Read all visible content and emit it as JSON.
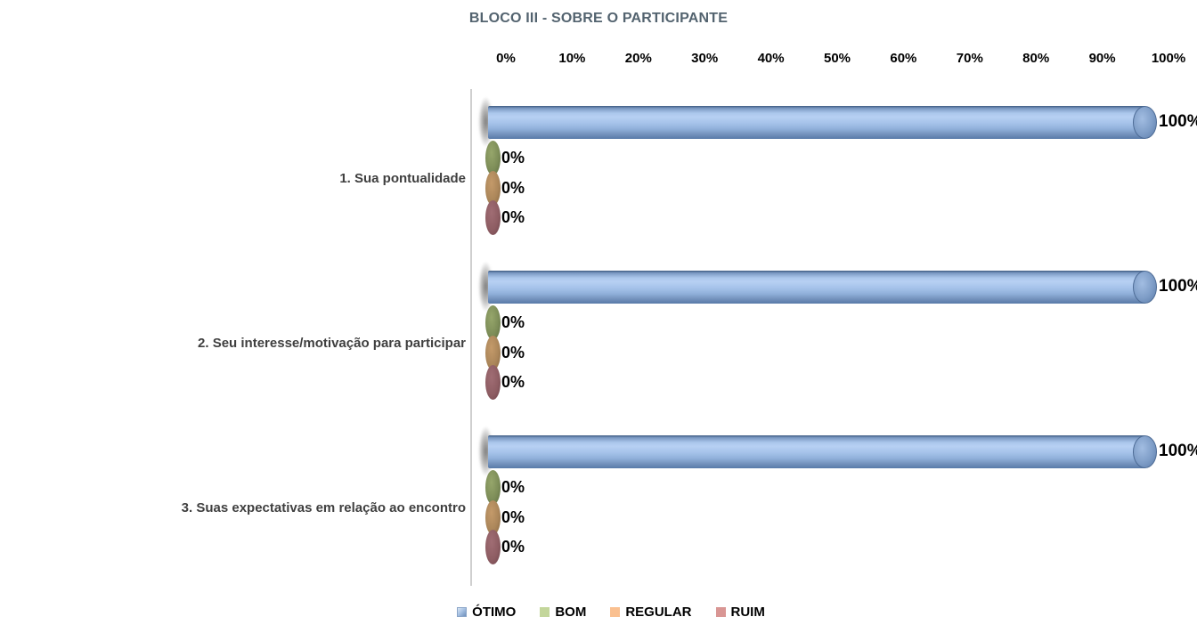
{
  "chart_data": {
    "type": "bar",
    "bar_style": "cylinder-3d",
    "orientation": "horizontal",
    "title": "BLOCO III - SOBRE O PARTICIPANTE",
    "categories": [
      "1. Sua pontualidade",
      "2. Seu interesse/motivação para participar",
      "3. Suas expectativas em relação ao encontro"
    ],
    "series": [
      {
        "name": "ÓTIMO",
        "values": [
          100,
          100,
          100
        ],
        "color": "#95B3D7"
      },
      {
        "name": "BOM",
        "values": [
          0,
          0,
          0
        ],
        "color": "#C3D69B"
      },
      {
        "name": "REGULAR",
        "values": [
          0,
          0,
          0
        ],
        "color": "#FAC090"
      },
      {
        "name": "RUIM",
        "values": [
          0,
          0,
          0
        ],
        "color": "#D99694"
      }
    ],
    "x_axis": {
      "position": "top",
      "min": 0,
      "max": 100,
      "ticks": [
        "0%",
        "10%",
        "20%",
        "30%",
        "40%",
        "50%",
        "60%",
        "70%",
        "80%",
        "90%",
        "100%"
      ]
    },
    "data_labels": true,
    "data_label_format": "percent",
    "legend_position": "bottom",
    "grid": false
  },
  "colors": {
    "title": "#53636f",
    "category_label": "#3f3f3f",
    "axis_line": "#cfcfcf",
    "tick_label": "#000000",
    "cylinder_light": "#b7d0f3",
    "cylinder_dark": "#587aa8",
    "zero_ellipses": {
      "BOM": {
        "light": "#96a66b",
        "base": "#7d8d58",
        "dark": "#5c6b3e"
      },
      "REGULAR": {
        "light": "#c49a6a",
        "base": "#ab865a",
        "dark": "#84653f"
      },
      "RUIM": {
        "light": "#a06d74",
        "base": "#8e5d63",
        "dark": "#6d444b"
      }
    }
  }
}
